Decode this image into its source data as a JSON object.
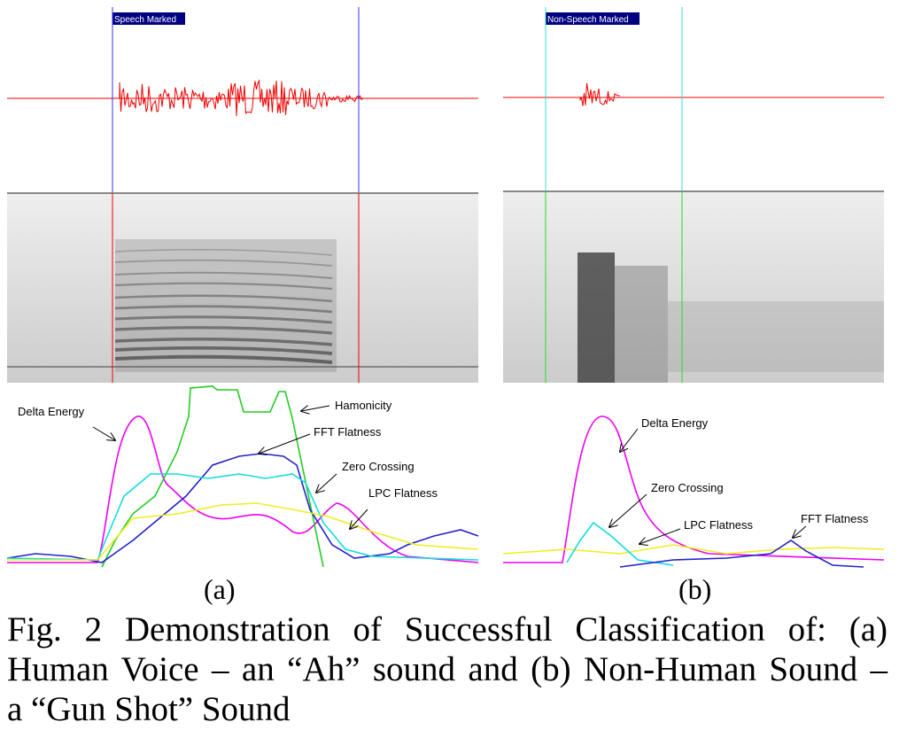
{
  "figure": {
    "panel_a": {
      "marker": "Speech Marked",
      "labels": [
        "Delta Energy",
        "Hamonicity",
        "FFT Flatness",
        "Zero Crossing",
        "LPC Flatness"
      ],
      "tag": "(a)"
    },
    "panel_b": {
      "marker": "Non-Speech Marked",
      "labels": [
        "Delta Energy",
        "Zero Crossing",
        "LPC Flatness",
        "FFT Flatness"
      ],
      "tag": "(b)"
    }
  },
  "caption": {
    "lines": [
      "Fig. 2 Demonstration of Successful Classification of: (a)",
      "Human Voice – an “Ah” sound and (b) Non-Human Sound –",
      "a “Gun Shot” Sound"
    ]
  }
}
